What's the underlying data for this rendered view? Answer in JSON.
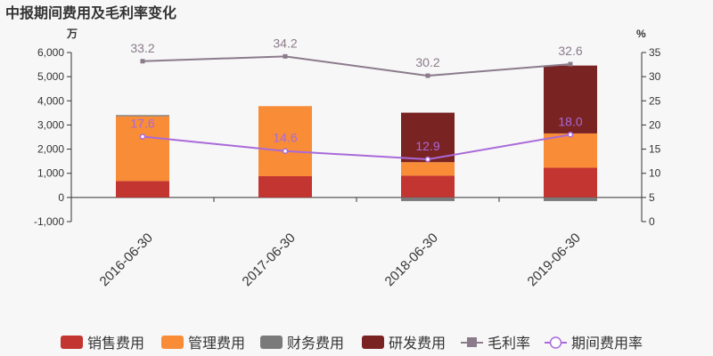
{
  "chart_data": {
    "type": "bar",
    "title": "中报期间费用及毛利率变化",
    "left_unit": "万",
    "right_unit": "%",
    "categories": [
      "2016-06-30",
      "2017-06-30",
      "2018-06-30",
      "2019-06-30"
    ],
    "ylim": [
      -1000,
      6000
    ],
    "yticks": [
      -1000,
      0,
      1000,
      2000,
      3000,
      4000,
      5000,
      6000
    ],
    "ytick_labels": [
      "-1,000",
      "0",
      "1,000",
      "2,000",
      "3,000",
      "4,000",
      "5,000",
      "6,000"
    ],
    "y2lim": [
      0,
      35
    ],
    "y2ticks": [
      0,
      5,
      10,
      15,
      20,
      25,
      30,
      35
    ],
    "y2tick_labels": [
      "0",
      "5",
      "10",
      "15",
      "20",
      "25",
      "30",
      "35"
    ],
    "bar_series": [
      {
        "name": "销售费用",
        "color": "#c23531",
        "values": [
          680,
          880,
          900,
          1230
        ]
      },
      {
        "name": "管理费用",
        "color": "#f98c36",
        "values": [
          2680,
          2900,
          560,
          1420
        ]
      },
      {
        "name": "财务费用",
        "color": "#7a7a7a",
        "values": [
          50,
          0,
          -150,
          -150
        ]
      },
      {
        "name": "研发费用",
        "color": "#7a2323",
        "values": [
          0,
          0,
          2050,
          2810
        ]
      }
    ],
    "line_series": [
      {
        "name": "毛利率",
        "color": "#8b7b8b",
        "values": [
          33.2,
          34.2,
          30.2,
          32.6
        ],
        "labels": [
          "33.2",
          "34.2",
          "30.2",
          "32.6"
        ]
      },
      {
        "name": "期间费用率",
        "color": "#a86ad9",
        "values": [
          17.6,
          14.6,
          12.9,
          18.0
        ],
        "labels": [
          "17.6",
          "14.6",
          "12.9",
          "18.0"
        ]
      }
    ],
    "legend": {
      "position": "bottom"
    }
  }
}
